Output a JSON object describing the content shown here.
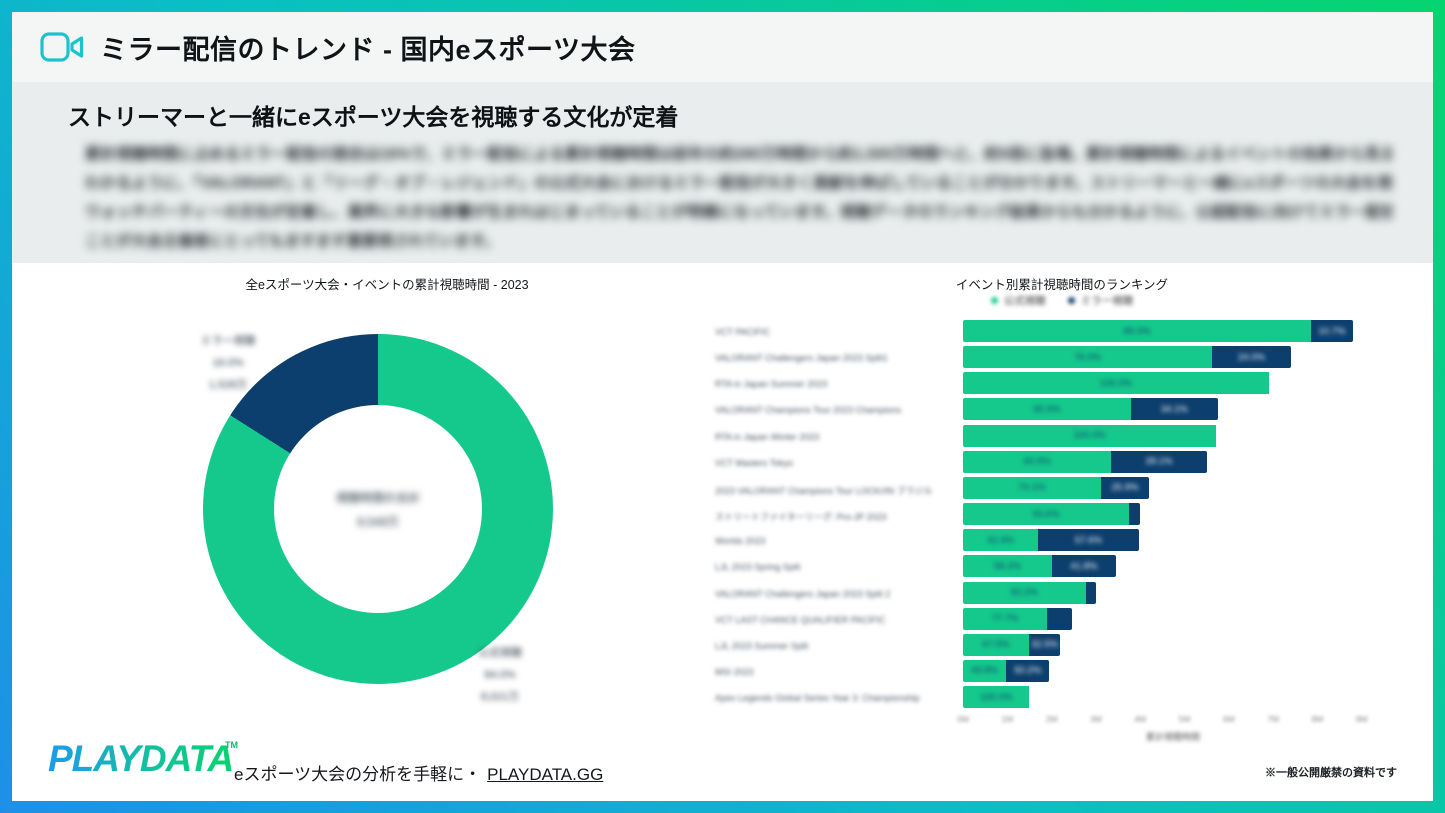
{
  "header": {
    "title": "ミラー配信のトレンド - 国内eスポーツ大会",
    "icon": "video-camera-icon"
  },
  "subtitle": "ストリーマーと一緒にeスポーツ大会を視聴する文化が定着",
  "paragraph_blurred": true,
  "paragraph_lines": [
    "累計視聴時間に占めるミラー配信の割合は16%で、ミラー配信による累計視聴時間は前年の約280万時間から約1,500万時間へと、約5倍に急増。累計視聴時間によるイベントの効果から見ることが",
    "わかるように、「VALORANT」と「リーグ・オブ・レジェンド」の公式大会におけるミラー配信が大きく貢献を伸ばしていることが分かります。ストリーマーと一緒にeスポーツの大会を視聴する",
    "ウォッチパーティーの文化が定着し、業界に大きな影響が生まれはじまっていることが明確になっています。視聴データのランキング結果からも分かるように、公認配信に向けてミラー配信をする",
    "ことが大会主催者にとってもますます重要視されています。"
  ],
  "colors": {
    "green": "#15c98c",
    "navy": "#0d3f6e",
    "teal_icon": "#1cc3cd",
    "border_gradient": [
      "#1e8fe8",
      "#0abfc4",
      "#05d56f"
    ],
    "logo_gradient": [
      "#1e9be9",
      "#06d36e"
    ]
  },
  "chart_data": [
    {
      "type": "pie",
      "donut": true,
      "title": "全eスポーツ大会・イベントの累計視聴時間 - 2023",
      "labels_blurred": true,
      "slices": [
        {
          "name": "公式視聴",
          "percent": 84.0,
          "value_label": "8,021万",
          "color": "#15c98c"
        },
        {
          "name": "ミラー視聴",
          "percent": 16.0,
          "value_label": "1,528万",
          "color": "#0d3f6e"
        }
      ],
      "mirror": {
        "name": "ミラー視聴",
        "pct": "16.0%",
        "value": "1,528万"
      },
      "official": {
        "name": "公式視聴",
        "pct": "84.0%",
        "value": "8,021万"
      },
      "center_label": "視聴時間の合計",
      "center_value": "9,549万"
    },
    {
      "type": "bar",
      "orientation": "horizontal",
      "stacked": true,
      "title": "イベント別累計視聴時間のランキング",
      "legend": [
        "公式視聴",
        "ミラー視聴"
      ],
      "legend_position": "top-center",
      "xlabel": "累計視聴時間",
      "x_ticks": [
        "0M",
        "1M",
        "2M",
        "3M",
        "4M",
        "5M",
        "6M",
        "7M",
        "8M",
        "9M"
      ],
      "xlim": [
        0,
        9
      ],
      "grid": false,
      "values_blurred": true,
      "rows": [
        {
          "label": "VCT PACIFIC",
          "total_m": 8.8,
          "official_pct": 89.3,
          "official_label": "89.3%",
          "mirror_label": "10.7%"
        },
        {
          "label": "VALORANT Challengers Japan 2023 Split1",
          "total_m": 7.4,
          "official_pct": 76.0,
          "official_label": "76.0%",
          "mirror_label": "24.0%"
        },
        {
          "label": "RTA in Japan Summer 2023",
          "total_m": 6.9,
          "official_pct": 100,
          "official_label": "100.0%",
          "mirror_label": null
        },
        {
          "label": "VALORANT Champions Tour 2023 Champions",
          "total_m": 5.75,
          "official_pct": 65.9,
          "official_label": "65.9%",
          "mirror_label": "34.1%"
        },
        {
          "label": "RTA in Japan Winter 2023",
          "total_m": 5.72,
          "official_pct": 100,
          "official_label": "100.0%",
          "mirror_label": null
        },
        {
          "label": "VCT Masters Tokyo",
          "total_m": 5.5,
          "official_pct": 60.9,
          "official_label": "60.9%",
          "mirror_label": "39.1%"
        },
        {
          "label": "2023 VALORANT Champions Tour LOCK//IN ブラジル",
          "total_m": 4.2,
          "official_pct": 74.1,
          "official_label": "74.1%",
          "mirror_label": "25.9%"
        },
        {
          "label": "ストリートファイターリーグ: Pro-JP 2023",
          "total_m": 4.0,
          "official_pct": 93.6,
          "official_label": "93.6%",
          "mirror_label": null
        },
        {
          "label": "Worlds 2023",
          "total_m": 3.98,
          "official_pct": 42.4,
          "official_label": "42.4%",
          "mirror_label": "57.6%"
        },
        {
          "label": "LJL 2023 Spring Split",
          "total_m": 3.45,
          "official_pct": 58.2,
          "official_label": "58.2%",
          "mirror_label": "41.8%"
        },
        {
          "label": "VALORANT Challengers Japan 2023 Split 2",
          "total_m": 3.0,
          "official_pct": 92.2,
          "official_label": "92.2%",
          "mirror_label": null
        },
        {
          "label": "VCT LAST CHANCE QUALIFIER PACIFIC",
          "total_m": 2.45,
          "official_pct": 77.7,
          "official_label": "77.7%",
          "mirror_label": null
        },
        {
          "label": "LJL 2023 Summer Split",
          "total_m": 2.2,
          "official_pct": 67.5,
          "official_label": "67.5%",
          "mirror_label": "32.5%"
        },
        {
          "label": "MSI 2023",
          "total_m": 1.95,
          "official_pct": 49.8,
          "official_label": "49.8%",
          "mirror_label": "50.2%"
        },
        {
          "label": "Apex Legends Global Series Year 3: Championship",
          "total_m": 1.5,
          "official_pct": 100,
          "official_label": "100.0%",
          "mirror_label": null
        }
      ]
    }
  ],
  "footer": {
    "logo": "PLAYDATA",
    "logo_tm": "TM",
    "tagline": "eスポーツ大会の分析を手軽に・",
    "link": "PLAYDATA.GG",
    "note": "※一般公開厳禁の資料です"
  }
}
